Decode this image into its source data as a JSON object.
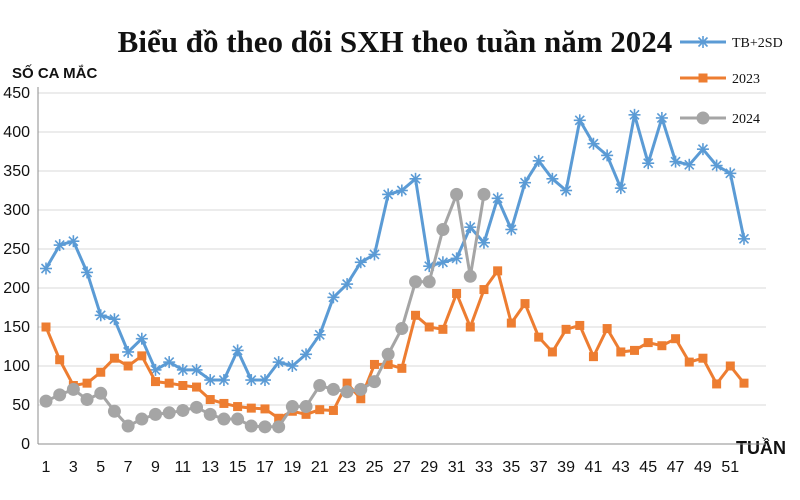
{
  "chart_data": {
    "type": "line",
    "title": "Biểu đồ theo dõi SXH theo tuần năm 2024",
    "ylabel": "SỐ CA MẮC",
    "xlabel": "TUẦN",
    "ylim": [
      0,
      450
    ],
    "yticks": [
      0,
      50,
      100,
      150,
      200,
      250,
      300,
      350,
      400,
      450
    ],
    "xlim": [
      1,
      52
    ],
    "xticks": [
      1,
      3,
      5,
      7,
      9,
      11,
      13,
      15,
      17,
      19,
      21,
      23,
      25,
      27,
      29,
      31,
      33,
      35,
      37,
      39,
      41,
      43,
      45,
      47,
      49,
      51
    ],
    "grid": true,
    "legend_position": "top-right",
    "series": [
      {
        "name": "TB+2SD",
        "color": "#5b9bd5",
        "marker": "star",
        "x": [
          1,
          2,
          3,
          4,
          5,
          6,
          7,
          8,
          9,
          10,
          11,
          12,
          13,
          14,
          15,
          16,
          17,
          18,
          19,
          20,
          21,
          22,
          23,
          24,
          25,
          26,
          27,
          28,
          29,
          30,
          31,
          32,
          33,
          34,
          35,
          36,
          37,
          38,
          39,
          40,
          41,
          42,
          43,
          44,
          45,
          46,
          47,
          48,
          49,
          50,
          51,
          52
        ],
        "values": [
          225,
          255,
          260,
          220,
          165,
          160,
          118,
          135,
          95,
          105,
          95,
          95,
          82,
          82,
          120,
          82,
          82,
          105,
          100,
          115,
          140,
          188,
          205,
          233,
          243,
          320,
          325,
          340,
          228,
          233,
          238,
          278,
          258,
          315,
          275,
          335,
          363,
          340,
          325,
          415,
          385,
          370,
          328,
          422,
          360,
          418,
          362,
          358,
          378,
          357,
          347,
          263
        ]
      },
      {
        "name": "2023",
        "color": "#ed7d31",
        "marker": "square",
        "x": [
          1,
          2,
          3,
          4,
          5,
          6,
          7,
          8,
          9,
          10,
          11,
          12,
          13,
          14,
          15,
          16,
          17,
          18,
          19,
          20,
          21,
          22,
          23,
          24,
          25,
          26,
          27,
          28,
          29,
          30,
          31,
          32,
          33,
          34,
          35,
          36,
          37,
          38,
          39,
          40,
          41,
          42,
          43,
          44,
          45,
          46,
          47,
          48,
          49,
          50,
          51,
          52
        ],
        "values": [
          150,
          108,
          75,
          78,
          92,
          110,
          100,
          113,
          80,
          78,
          75,
          73,
          57,
          52,
          48,
          46,
          45,
          33,
          42,
          38,
          44,
          43,
          78,
          58,
          102,
          102,
          97,
          165,
          150,
          147,
          193,
          150,
          198,
          222,
          155,
          180,
          137,
          118,
          147,
          152,
          112,
          148,
          118,
          120,
          130,
          126,
          135,
          105,
          110,
          77,
          100,
          78
        ]
      },
      {
        "name": "2024",
        "color": "#a5a5a5",
        "marker": "circle",
        "x": [
          1,
          2,
          3,
          4,
          5,
          6,
          7,
          8,
          9,
          10,
          11,
          12,
          13,
          14,
          15,
          16,
          17,
          18,
          19,
          20,
          21,
          22,
          23,
          24,
          25,
          26,
          27,
          28,
          29,
          30,
          31,
          32,
          33
        ],
        "values": [
          55,
          63,
          70,
          57,
          65,
          42,
          23,
          32,
          38,
          40,
          43,
          47,
          38,
          32,
          32,
          23,
          22,
          22,
          48,
          48,
          75,
          70,
          67,
          70,
          80,
          115,
          148,
          208,
          208,
          275,
          320,
          215,
          320
        ]
      }
    ]
  }
}
